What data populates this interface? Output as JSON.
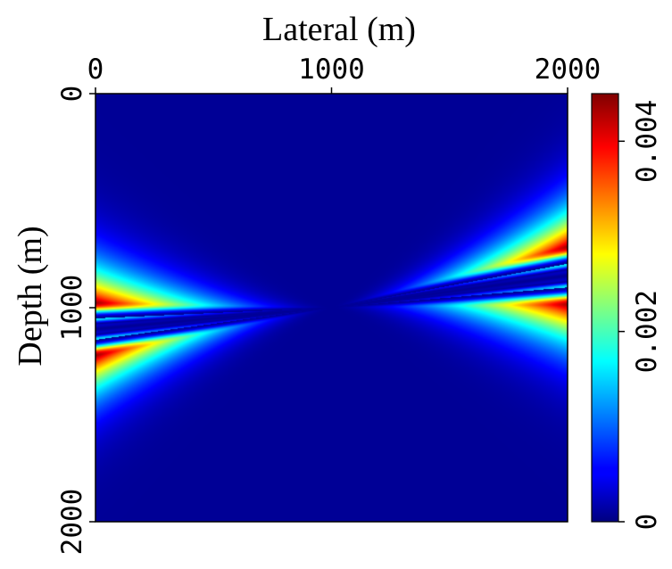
{
  "chart_data": {
    "type": "heatmap",
    "title": "",
    "xlabel": "Lateral (m)",
    "ylabel": "Depth (m)",
    "xlim": [
      0,
      2000
    ],
    "ylim": [
      0,
      2000
    ],
    "x_axis_position": "top",
    "y_axis_direction": "down",
    "xticks": [
      0,
      1000,
      2000
    ],
    "xtick_labels": [
      "0",
      "1000",
      "2000"
    ],
    "yticks": [
      0,
      1000,
      2000
    ],
    "ytick_labels": [
      "0",
      "1000",
      "2000"
    ],
    "colormap": "jet",
    "colorbar": {
      "min": 0,
      "max": 0.0045,
      "ticks": [
        0,
        0.002,
        0.004
      ],
      "tick_labels": [
        "0",
        "0.002",
        "0.004"
      ]
    },
    "source_point": {
      "x": 1000,
      "y": 1000
    },
    "lobes": [
      {
        "side": "left",
        "edge_x": 0,
        "center_depth": 1100,
        "notch_depths": [
          1100,
          1200
        ],
        "peak_depths": [
          1040,
          1300
        ],
        "peak_value": 0.0045
      },
      {
        "side": "right",
        "edge_x": 2000,
        "center_depth": 850,
        "notch_depths": [
          780,
          890
        ],
        "peak_depths": [
          720,
          960
        ],
        "peak_value": 0.0045
      }
    ],
    "background_value": 0.0001
  }
}
